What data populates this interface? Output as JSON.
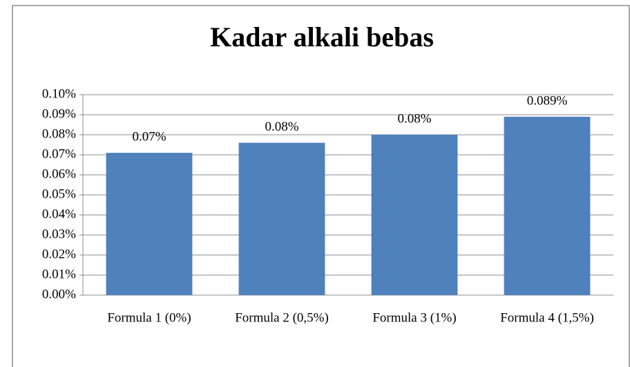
{
  "chart_data": {
    "type": "bar",
    "title": "Kadar alkali bebas",
    "categories": [
      "Formula 1 (0%)",
      "Formula 2 (0,5%)",
      "Formula 3 (1%)",
      "Formula 4 (1,5%)"
    ],
    "values": [
      0.071,
      0.076,
      0.08,
      0.089
    ],
    "value_labels": [
      "0.07%",
      "0.08%",
      "0.08%",
      "0.089%"
    ],
    "color": "#4f81bd",
    "ylim": [
      0,
      0.1
    ],
    "yticks": [
      {
        "value": 0,
        "label": "0.00%"
      },
      {
        "value": 0.01,
        "label": "0.01%"
      },
      {
        "value": 0.02,
        "label": "0.02%"
      },
      {
        "value": 0.03,
        "label": "0.03%"
      },
      {
        "value": 0.04,
        "label": "0.04%"
      },
      {
        "value": 0.05,
        "label": "0.05%"
      },
      {
        "value": 0.06,
        "label": "0.06%"
      },
      {
        "value": 0.07,
        "label": "0.07%"
      },
      {
        "value": 0.08,
        "label": "0.08%"
      },
      {
        "value": 0.09,
        "label": "0.09%"
      },
      {
        "value": 0.1,
        "label": "0.10%"
      }
    ],
    "grid": true
  }
}
